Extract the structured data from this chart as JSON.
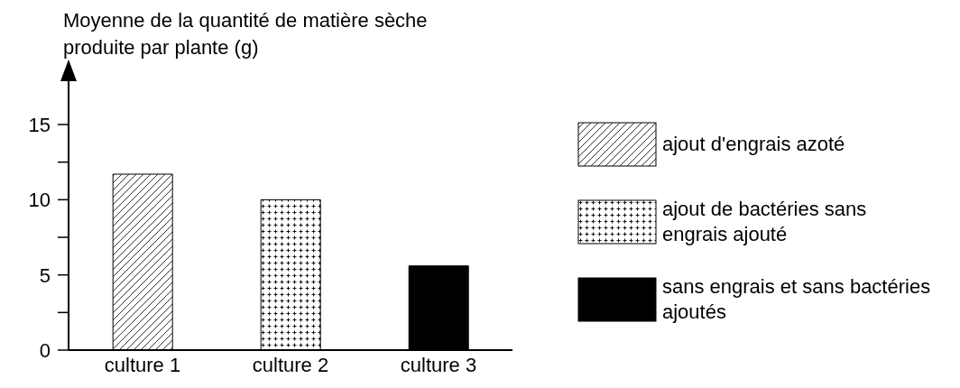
{
  "chart_data": {
    "type": "bar",
    "ylabel": "Moyenne de la quantité de matière sèche produite par plante (g)",
    "categories": [
      "culture 1",
      "culture 2",
      "culture 3"
    ],
    "stacked": true,
    "series": [
      {
        "name": "ajout d'engrais azoté",
        "color": "#000000",
        "values": [
          11.7,
          null,
          null
        ]
      },
      {
        "name": "ajout de bactéries sans engrais ajouté",
        "color": "#000000",
        "values": [
          null,
          10,
          null
        ]
      },
      {
        "name": "sans engrais et sans bactéries ajoutés",
        "color": "#000000",
        "values": [
          null,
          null,
          5.6
        ]
      }
    ],
    "ylim": [
      0,
      18
    ],
    "yticks": [
      0,
      {
        "value": 2.5,
        "label": null
      },
      5,
      {
        "value": 7.5,
        "label": null
      },
      10,
      {
        "value": 12.5,
        "label": null
      },
      15
    ],
    "grid": false,
    "legend": "right"
  }
}
